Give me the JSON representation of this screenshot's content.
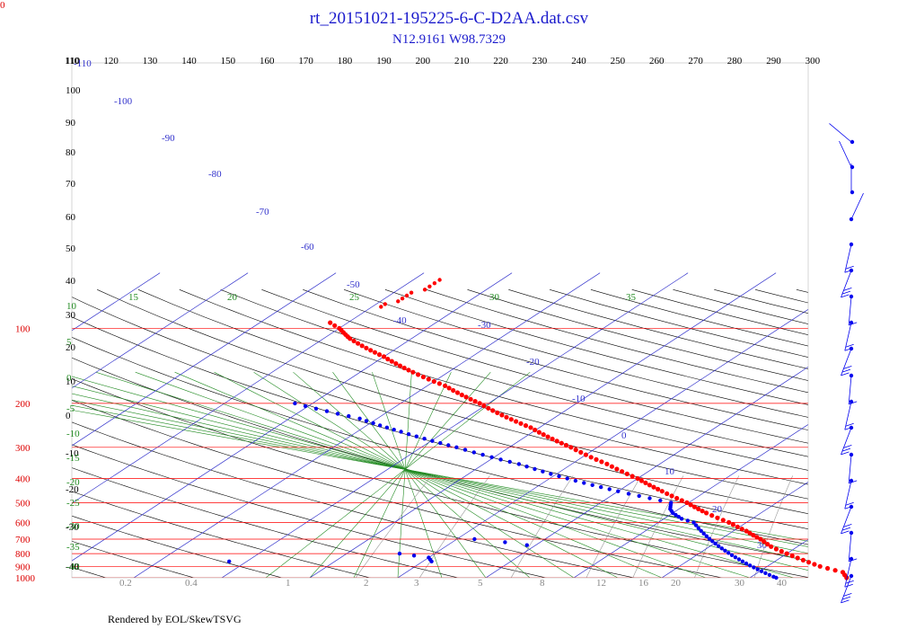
{
  "corner_label": "0",
  "footer": "Rendered by EOL/SkewTSVG",
  "chart_data": {
    "type": "scatter",
    "title": "rt_20151021-195225-6-C-D2AA.dat.csv",
    "subtitle": "N12.9161 W98.7329",
    "pressure_levels": [
      100,
      200,
      300,
      400,
      500,
      600,
      700,
      800,
      900,
      1000
    ],
    "temperature_ticks_top": [
      110,
      120,
      130,
      140,
      150,
      160,
      170,
      180,
      190,
      200,
      210,
      220,
      230,
      240,
      250,
      260,
      270,
      280,
      290,
      300
    ],
    "height_ticks_left": [
      "110",
      "100",
      "90",
      "80",
      "70",
      "60",
      "50",
      "40",
      "30",
      "20",
      "10",
      "0",
      "-10",
      "-20",
      "-30",
      "-40"
    ],
    "isotherm_labels": [
      "-110",
      "-100",
      "-90",
      "-80",
      "-70",
      "-60",
      "-50",
      "-40",
      "-30",
      "-20",
      "-10",
      "0",
      "10",
      "20",
      "30"
    ],
    "adiabat_labels_green": [
      "15",
      "20",
      "25",
      "30",
      "35"
    ],
    "green_left_labels": [
      "10",
      "5",
      "0",
      "-5",
      "-10",
      "-15",
      "-20",
      "-25",
      "-30",
      "-35",
      "-40"
    ],
    "mixing_ratio_labels": [
      "0.2",
      "0.4",
      "1",
      "2",
      "3",
      "5",
      "8",
      "12",
      "16",
      "20",
      "30",
      "40"
    ],
    "colors": {
      "temperature": "#ff0000",
      "dewpoint": "#0000ee",
      "isotherm": "#3333cc",
      "isobar": "#ff0000",
      "dry_adiabat": "#000000",
      "moist_adiabat": "#228b22",
      "mixing_ratio": "#999999"
    },
    "series": [
      {
        "name": "",
        "kind": "temperature",
        "points": [
          [
            1000,
            21
          ],
          [
            950,
            19.6
          ],
          [
            900,
            16
          ],
          [
            850,
            13
          ],
          [
            800,
            10
          ],
          [
            750,
            7
          ],
          [
            700,
            4.5
          ],
          [
            650,
            1.5
          ],
          [
            600,
            -2
          ],
          [
            550,
            -6.2
          ],
          [
            500,
            -10.2
          ],
          [
            450,
            -15
          ],
          [
            400,
            -20
          ],
          [
            350,
            -26
          ],
          [
            300,
            -33
          ],
          [
            250,
            -41
          ],
          [
            200,
            -51
          ],
          [
            170,
            -58
          ],
          [
            150,
            -64
          ],
          [
            130,
            -70
          ],
          [
            120,
            -73.5
          ],
          [
            110,
            -77
          ],
          [
            100,
            -80
          ],
          [
            95,
            -82
          ]
        ]
      },
      {
        "name": "",
        "kind": "temperature",
        "points": [
          [
            82,
            -79
          ],
          [
            80,
            -79
          ],
          [
            78,
            -78
          ],
          [
            76,
            -78
          ],
          [
            74,
            -78
          ],
          [
            72,
            -78
          ],
          [
            70,
            -77
          ],
          [
            68,
            -77
          ],
          [
            66,
            -77
          ],
          [
            64,
            -77
          ]
        ]
      },
      {
        "name": "",
        "kind": "dewpoint",
        "points": [
          [
            1000,
            13
          ],
          [
            990,
            12.5
          ],
          [
            600,
            -6
          ],
          [
            580,
            -8
          ],
          [
            550,
            -10
          ],
          [
            530,
            -11
          ],
          [
            500,
            -12
          ],
          [
            450,
            -20
          ],
          [
            400,
            -28
          ],
          [
            350,
            -36
          ],
          [
            300,
            -46
          ],
          [
            260,
            -55
          ],
          [
            230,
            -62
          ],
          [
            215,
            -67
          ],
          [
            200,
            -72
          ]
        ]
      },
      {
        "name": "",
        "kind": "dewpoint",
        "points": [
          [
            700,
            -28
          ],
          [
            720,
            -24
          ],
          [
            740,
            -21
          ]
        ]
      },
      {
        "name": "",
        "kind": "dewpoint",
        "points": [
          [
            800,
            -34
          ],
          [
            830,
            -30
          ],
          [
            860,
            -29
          ]
        ]
      },
      {
        "name": "",
        "kind": "dewpoint",
        "points": [
          [
            860,
            -52
          ]
        ]
      }
    ]
  }
}
